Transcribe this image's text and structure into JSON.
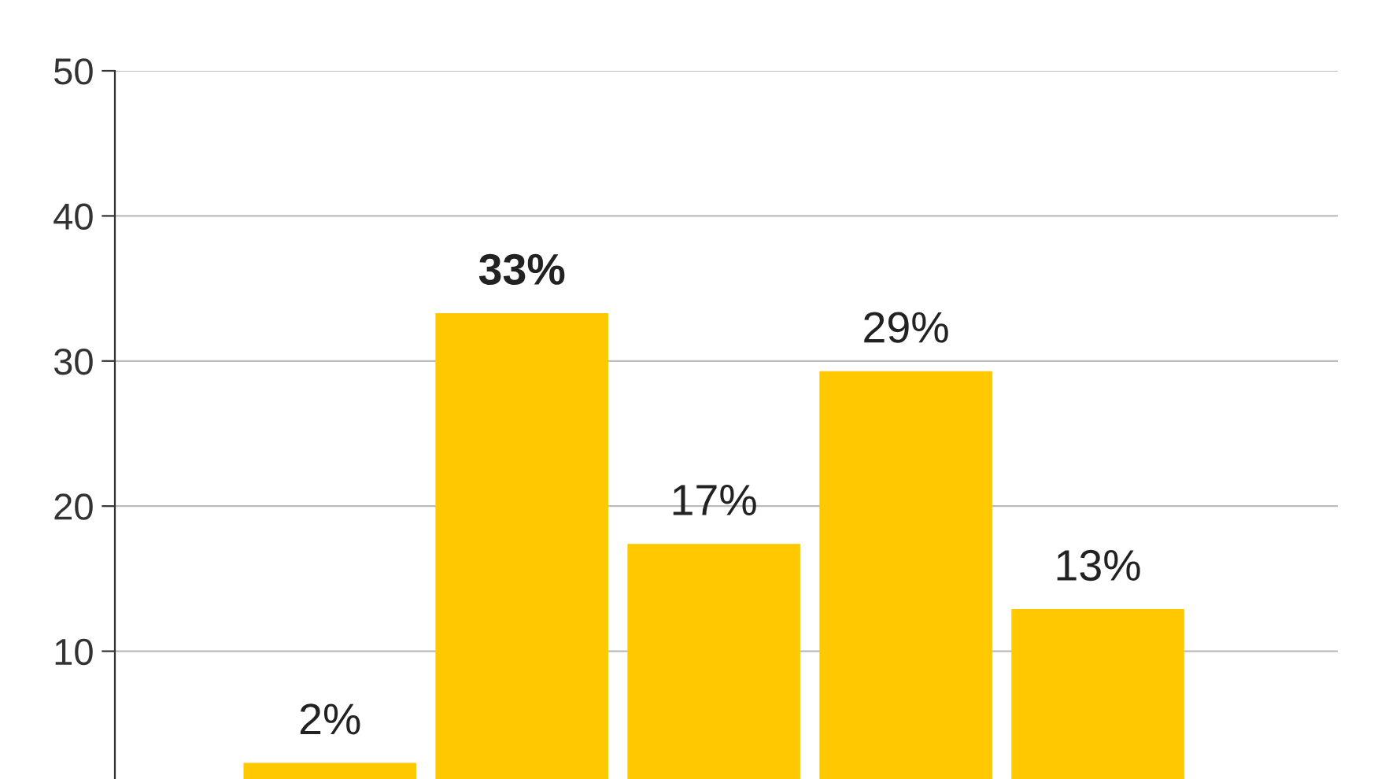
{
  "chart_data": {
    "type": "bar",
    "categories": [
      null,
      null,
      null,
      null,
      null
    ],
    "values": [
      2.3,
      33.3,
      17.4,
      29.3,
      12.9
    ],
    "value_labels": [
      "2%",
      "33%",
      "17%",
      "29%",
      "13%"
    ],
    "color": "#ffc800",
    "ylim": [
      0,
      50
    ],
    "yticks": [
      10,
      20,
      30,
      40,
      50
    ],
    "grid": "y"
  }
}
